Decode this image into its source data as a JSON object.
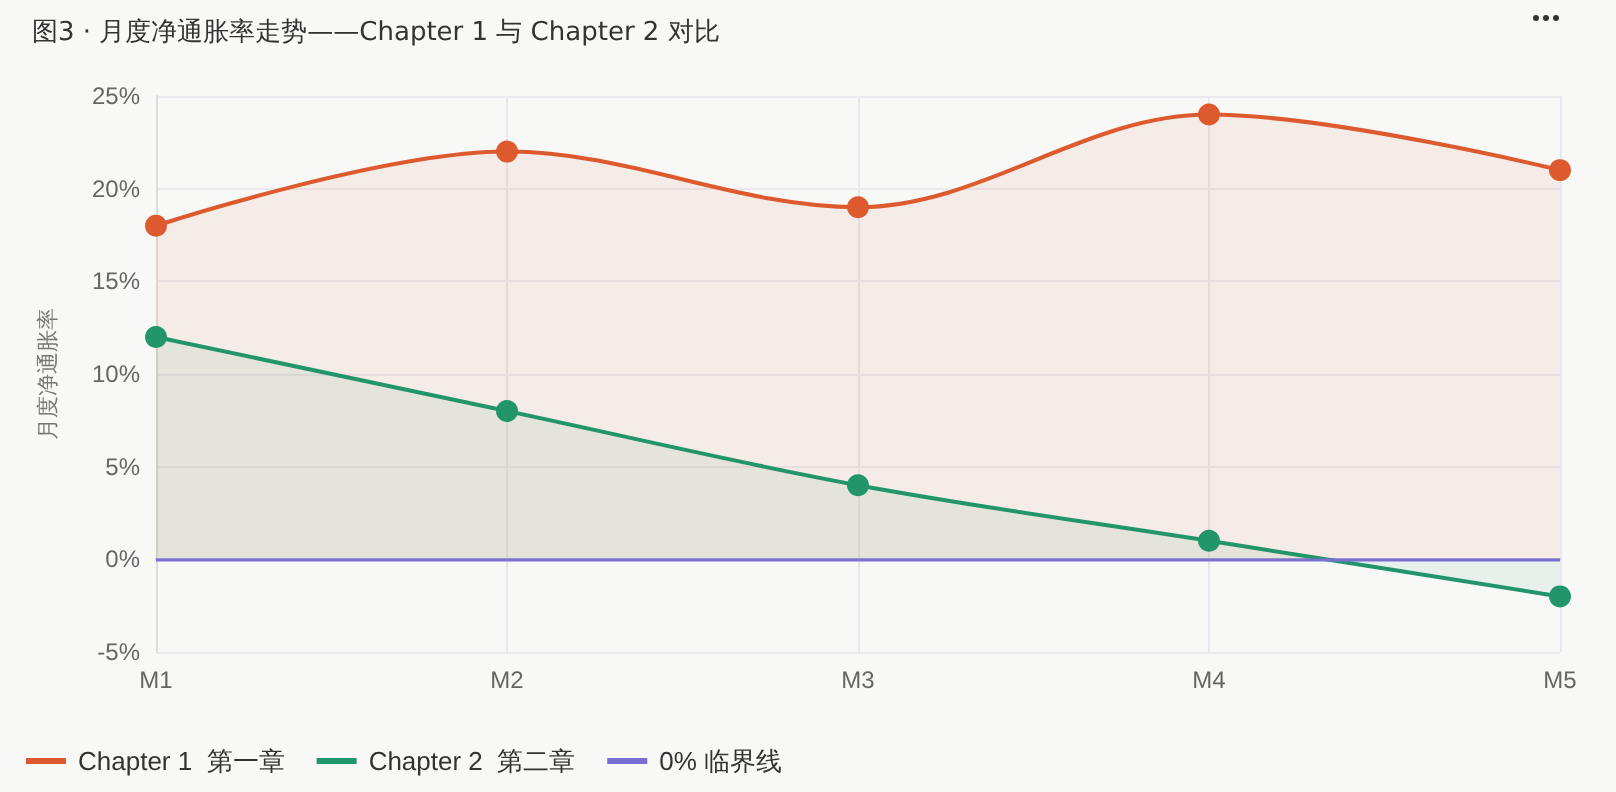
{
  "chart_data": {
    "type": "area",
    "title": "图3 · 月度净通胀率走势——Chapter 1 与 Chapter 2 对比",
    "ylabel": "月度净通胀率",
    "categories": [
      "M1",
      "M2",
      "M3",
      "M4",
      "M5"
    ],
    "series": [
      {
        "name": "Chapter 1  第一章",
        "color": "#dc5a2e",
        "values": [
          18,
          22,
          19,
          24,
          21
        ]
      },
      {
        "name": "Chapter 2  第二章",
        "color": "#23956a",
        "values": [
          12,
          8,
          4,
          1,
          -2
        ]
      }
    ],
    "ref_lines": [
      {
        "axis": "y",
        "value": 0,
        "label": "0% 临界线",
        "color": "#7b6fd6"
      }
    ],
    "ylim": [
      -5,
      25
    ],
    "yticks": [
      {
        "value": -5,
        "label": "-5%"
      },
      {
        "value": 0,
        "label": "0%"
      },
      {
        "value": 5,
        "label": "5%"
      },
      {
        "value": 10,
        "label": "10%"
      },
      {
        "value": 15,
        "label": "15%"
      },
      {
        "value": 20,
        "label": "20%"
      },
      {
        "value": 25,
        "label": "25%"
      }
    ],
    "grid": true,
    "legend": "bottom left",
    "marker": "circle",
    "line_style": "solid"
  }
}
